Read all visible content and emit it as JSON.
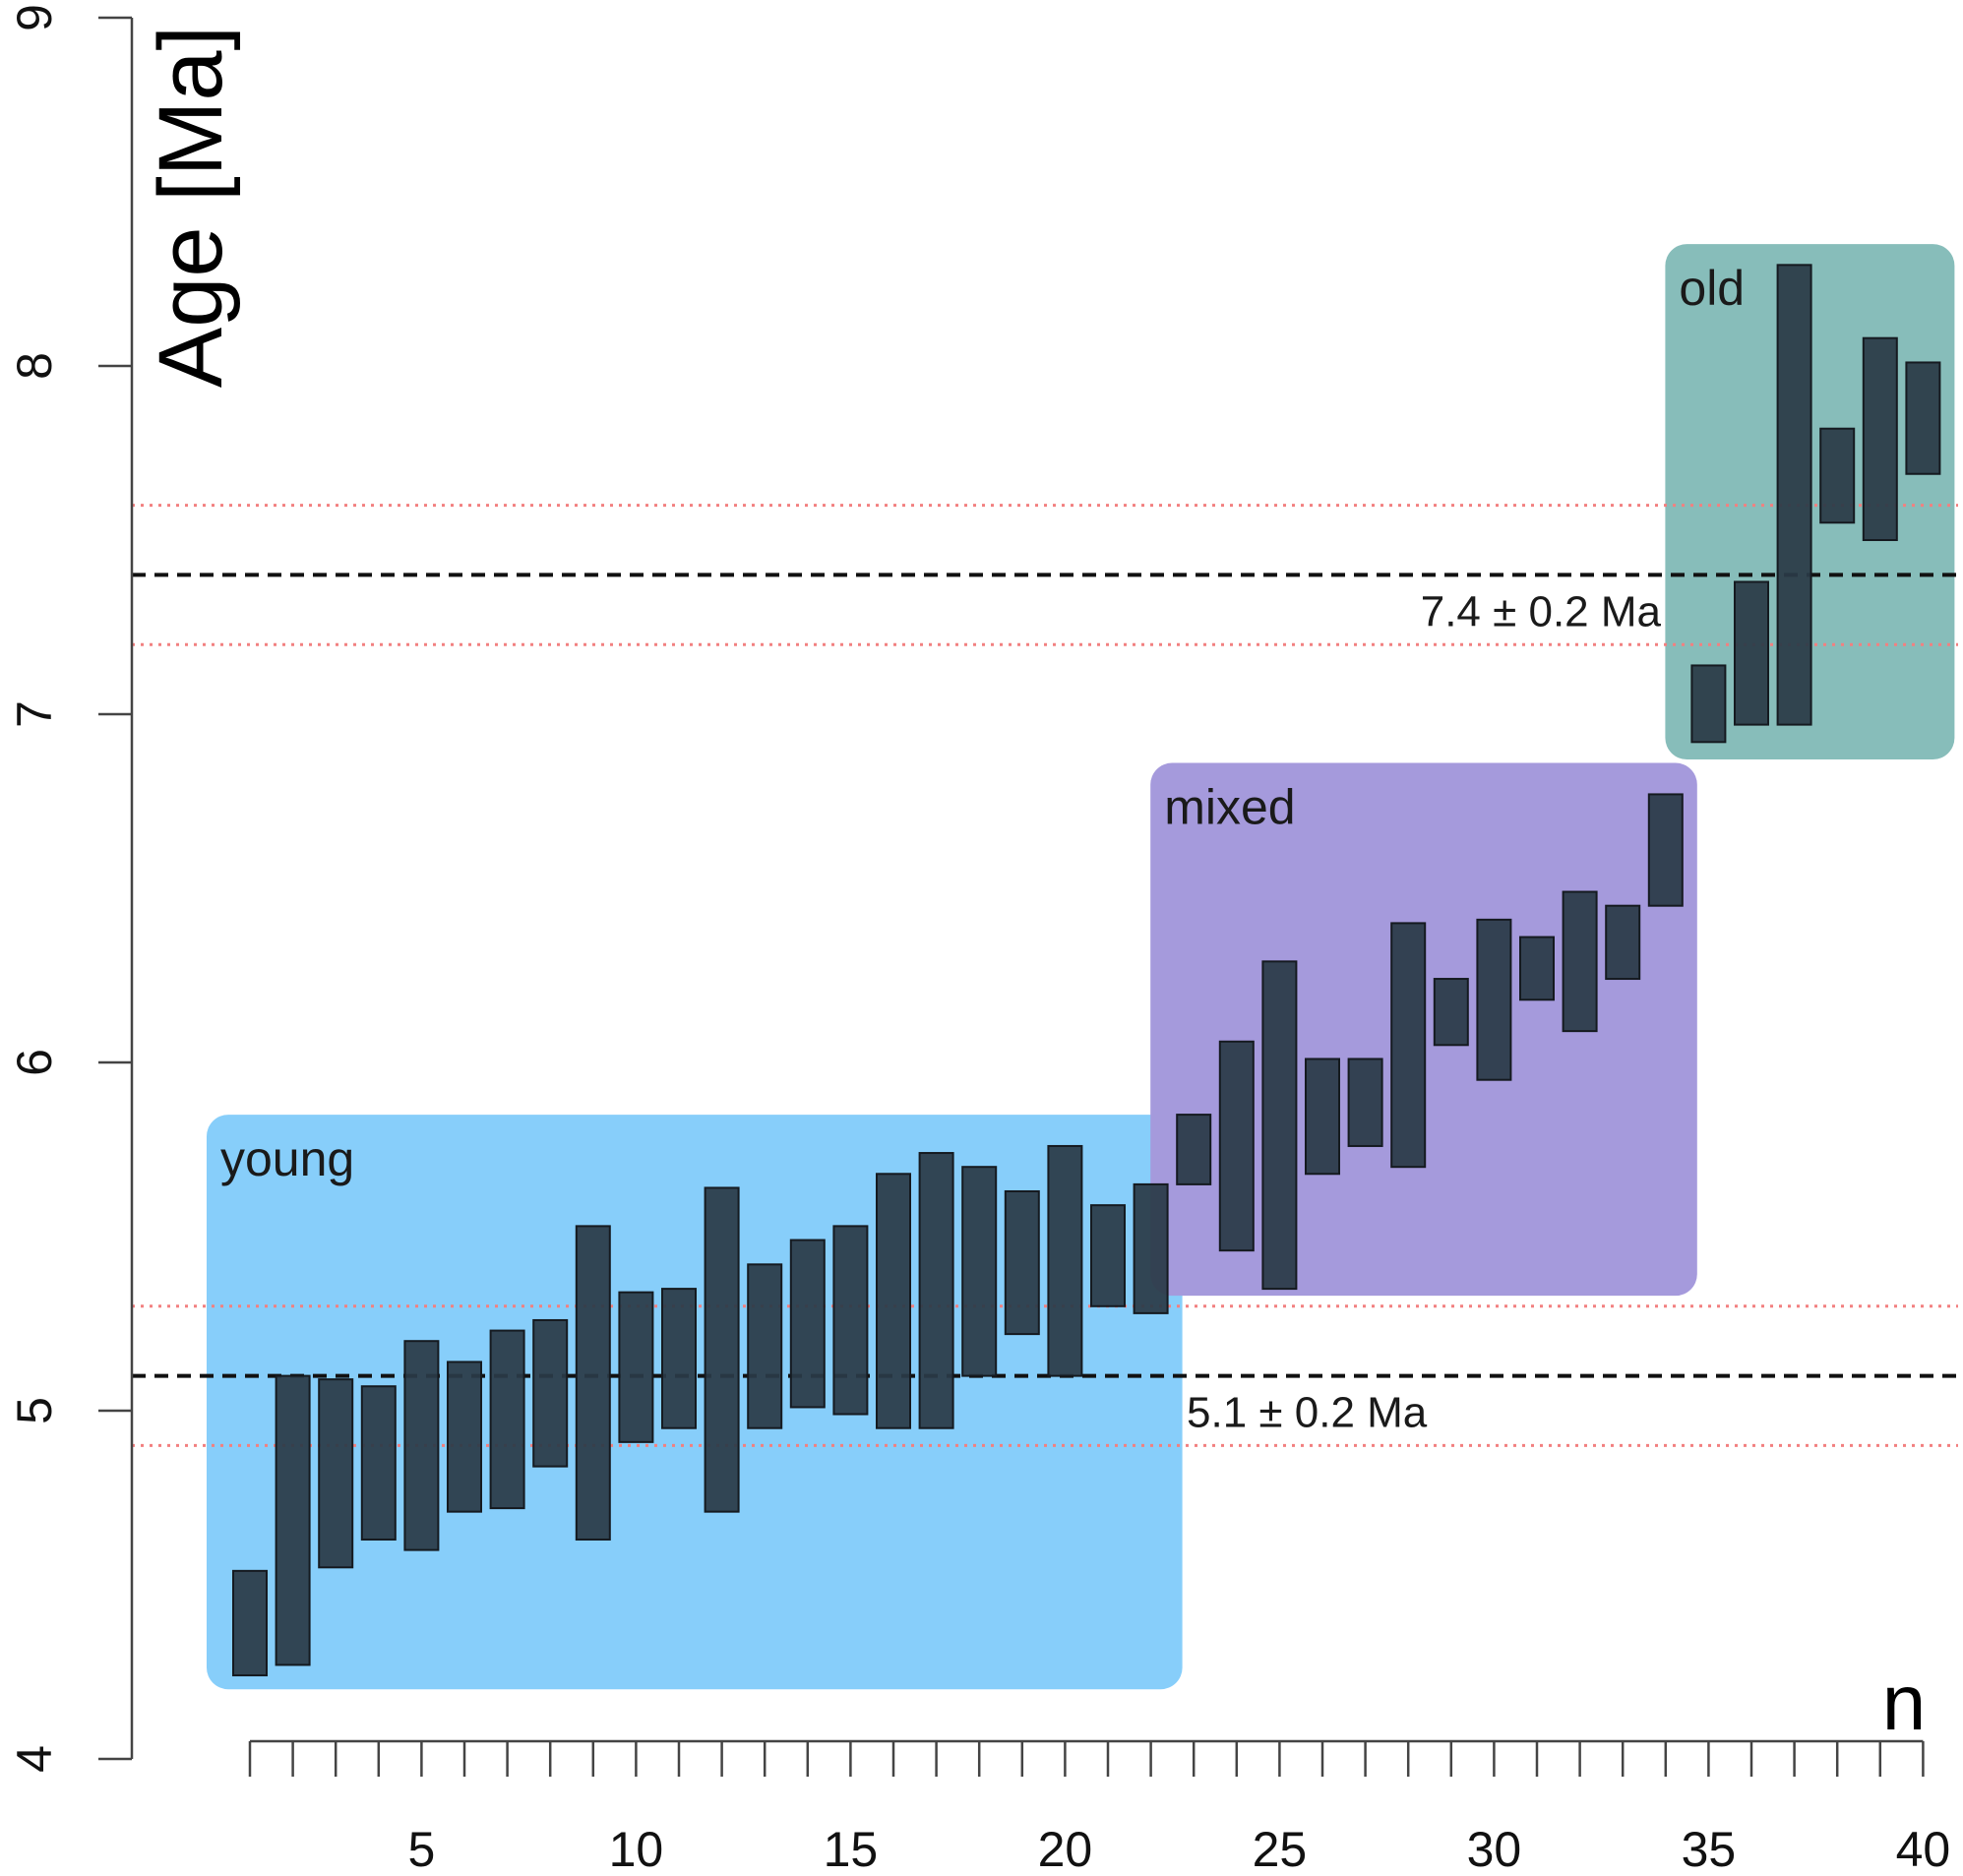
{
  "chart_data": {
    "type": "bar",
    "xlabel": "n",
    "ylabel": "Age [Ma]",
    "ylim": [
      4,
      9
    ],
    "xlim": [
      1,
      40
    ],
    "y_ticks": [
      "4",
      "5",
      "6",
      "7",
      "8",
      "9"
    ],
    "x_tick_labels": [
      "5",
      "10",
      "15",
      "20",
      "25",
      "30",
      "35",
      "40"
    ],
    "groups": [
      {
        "name": "young",
        "color": "#87cefa",
        "n_range": [
          1,
          22
        ],
        "age_range": [
          4.2,
          5.85
        ]
      },
      {
        "name": "mixed",
        "color": "#a59adc",
        "n_range": [
          23,
          34
        ],
        "age_range": [
          5.33,
          6.86
        ]
      },
      {
        "name": "old",
        "color": "#87bdba",
        "n_range": [
          35,
          40
        ],
        "age_range": [
          6.87,
          8.35
        ]
      }
    ],
    "reference_lines": [
      {
        "label": "7.4 ± 0.2 Ma",
        "value": 7.4,
        "lower": 7.2,
        "upper": 7.6
      },
      {
        "label": "5.1 ± 0.2 Ma",
        "value": 5.1,
        "lower": 4.9,
        "upper": 5.3
      }
    ],
    "series": [
      {
        "bar_color": "#2a3a47",
        "n": [
          1,
          2,
          3,
          4,
          5,
          6,
          7,
          8,
          9,
          10,
          11,
          12,
          13,
          14,
          15,
          16,
          17,
          18,
          19,
          20,
          21,
          22,
          23,
          24,
          25,
          26,
          27,
          28,
          29,
          30,
          31,
          32,
          33,
          34,
          35,
          36,
          37,
          38,
          39,
          40
        ],
        "low": [
          4.24,
          4.27,
          4.55,
          4.63,
          4.6,
          4.71,
          4.72,
          4.84,
          4.63,
          4.91,
          4.95,
          4.71,
          4.95,
          5.01,
          4.99,
          4.95,
          4.95,
          5.1,
          5.22,
          5.1,
          5.3,
          5.28,
          5.65,
          5.46,
          5.35,
          5.68,
          5.76,
          5.7,
          6.05,
          5.95,
          6.18,
          6.09,
          6.24,
          6.45,
          6.92,
          6.97,
          6.97,
          7.55,
          7.5,
          7.69
        ],
        "high": [
          4.54,
          5.1,
          5.09,
          5.07,
          5.2,
          5.14,
          5.23,
          5.26,
          5.53,
          5.34,
          5.35,
          5.64,
          5.42,
          5.49,
          5.53,
          5.68,
          5.74,
          5.7,
          5.63,
          5.76,
          5.59,
          5.65,
          5.85,
          6.06,
          6.29,
          6.01,
          6.01,
          6.4,
          6.24,
          6.41,
          6.36,
          6.49,
          6.45,
          6.77,
          7.14,
          7.38,
          8.29,
          7.82,
          8.08,
          8.01
        ]
      }
    ]
  }
}
